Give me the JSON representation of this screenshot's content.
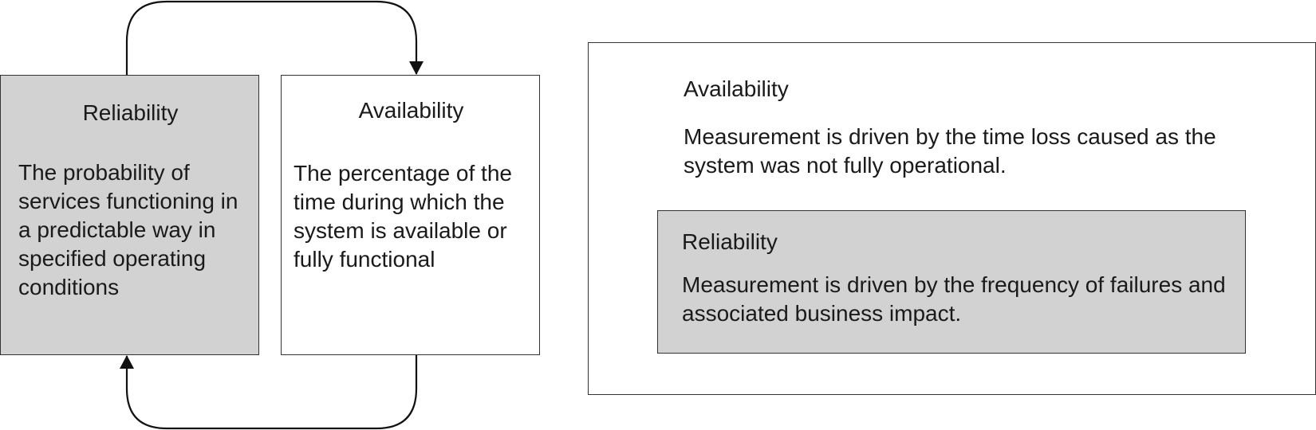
{
  "cycle_diagram": {
    "reliability": {
      "title": "Reliability",
      "description": "The probability of services functioning in a predictable way in specified operating conditions"
    },
    "availability": {
      "title": "Availability",
      "description": "The percentage of the time during which the system is available or fully functional"
    },
    "connectors": [
      {
        "from": "reliability",
        "to": "availability"
      },
      {
        "from": "availability",
        "to": "reliability"
      }
    ]
  },
  "comparison_panel": {
    "availability": {
      "title": "Availability",
      "measurement": "Measurement is driven by the time loss caused as the system was not fully operational."
    },
    "reliability": {
      "title": "Reliability",
      "measurement": "Measurement is driven by the frequency of failures and associated business impact."
    }
  },
  "colors": {
    "reliability_fill": "#d2d2d2",
    "availability_fill": "#ffffff",
    "stroke": "#1a1a1a"
  }
}
